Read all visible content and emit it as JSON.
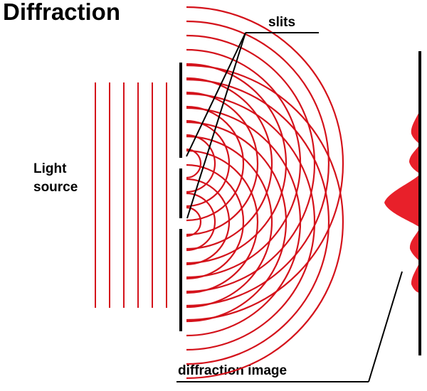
{
  "title": "Diffraction",
  "labels": {
    "slits": "slits",
    "light_source_line1": "Light",
    "light_source_line2": "source",
    "diffraction_image": "diffraction image"
  },
  "colors": {
    "wave": "#d4121b",
    "pattern": "#e8202a",
    "barrier": "#000000",
    "text": "#000000"
  }
}
